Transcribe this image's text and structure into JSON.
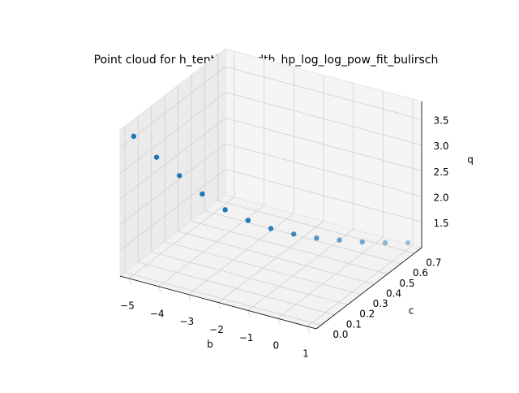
{
  "chart_data": {
    "type": "scatter3d",
    "title": "Point cloud for h_tenthousandth_hp_log_log_pow_fit_bulirsch",
    "xlabel": "b",
    "ylabel": "c",
    "zlabel": "q",
    "series": [
      {
        "color": "#1f77b4",
        "x": [
          -5,
          -4.5,
          -4,
          -3.5,
          -3,
          -2.5,
          -2,
          -1.5,
          -1,
          -0.5,
          0,
          0.5,
          1
        ],
        "y": [
          0,
          0.06,
          0.12,
          0.18,
          0.24,
          0.3,
          0.36,
          0.42,
          0.48,
          0.54,
          0.6,
          0.66,
          0.72
        ],
        "z": [
          3.7,
          3.25,
          2.85,
          2.45,
          2.1,
          1.85,
          1.65,
          1.5,
          1.38,
          1.3,
          1.22,
          1.16,
          1.12
        ]
      }
    ],
    "xlim": [
      -5.3,
      1.3
    ],
    "ylim": [
      -0.036,
      0.756
    ],
    "zlim": [
      1.0,
      3.85
    ],
    "xticks": [
      {
        "value": -5,
        "label": "−5"
      },
      {
        "value": -4,
        "label": "−4"
      },
      {
        "value": -3,
        "label": "−3"
      },
      {
        "value": -2,
        "label": "−2"
      },
      {
        "value": -1,
        "label": "−1"
      },
      0,
      1
    ],
    "yticks": [
      {
        "value": 0,
        "label": "0.0"
      },
      0.1,
      0.2,
      0.3,
      0.4,
      0.5,
      0.6,
      0.7
    ],
    "zticks": [
      1.5,
      {
        "value": 2,
        "label": "2.0"
      },
      2.5,
      {
        "value": 3,
        "label": "3.0"
      },
      3.5
    ],
    "grid": true
  }
}
